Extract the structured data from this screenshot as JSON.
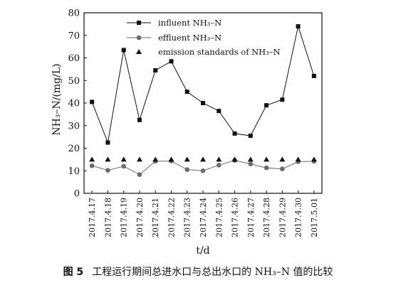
{
  "chart_data": {
    "type": "line",
    "x": [
      "2017.4.17",
      "2017.4.18",
      "2017.4.19",
      "2017.4.20",
      "2017.4.21",
      "2017.4.22",
      "2017.4.23",
      "2017.4.24",
      "2017.4.25",
      "2017.4.26",
      "2017.4.27",
      "2017.4.28",
      "2017.4.29",
      "2017.4.30",
      "2017.5.01"
    ],
    "series": [
      {
        "name": "influent NH₃–N",
        "marker": "square",
        "color": "#111111",
        "connected": true,
        "values": [
          40.5,
          22.5,
          63.5,
          32.5,
          54.5,
          58.5,
          45.0,
          40.0,
          36.5,
          26.5,
          25.5,
          39.0,
          41.5,
          74.0,
          52.0
        ]
      },
      {
        "name": "effluent NH₃–N",
        "marker": "circle",
        "color": "#6b6b6b",
        "connected": true,
        "values": [
          12.2,
          10.2,
          12.0,
          8.3,
          14.2,
          14.3,
          10.5,
          10.0,
          12.5,
          14.6,
          13.0,
          11.3,
          10.8,
          14.0,
          14.2
        ]
      },
      {
        "name": "emission standards of NH₃–N",
        "marker": "triangle",
        "color": "#111111",
        "connected": false,
        "values": [
          15,
          15,
          15,
          15,
          15,
          15,
          15,
          15,
          15,
          15,
          15,
          15,
          15,
          15,
          15
        ]
      }
    ],
    "xlabel": "t/d",
    "ylabel": "NH₃–N/(mg/L)",
    "ylim": [
      0,
      80
    ],
    "yticks": [
      0,
      10,
      20,
      30,
      40,
      50,
      60,
      70,
      80
    ],
    "legend_position": "top-right"
  },
  "caption": {
    "figure_no": "图 5",
    "text": "工程运行期间总进水口与总出水口的 NH₃–N 值的比较"
  }
}
